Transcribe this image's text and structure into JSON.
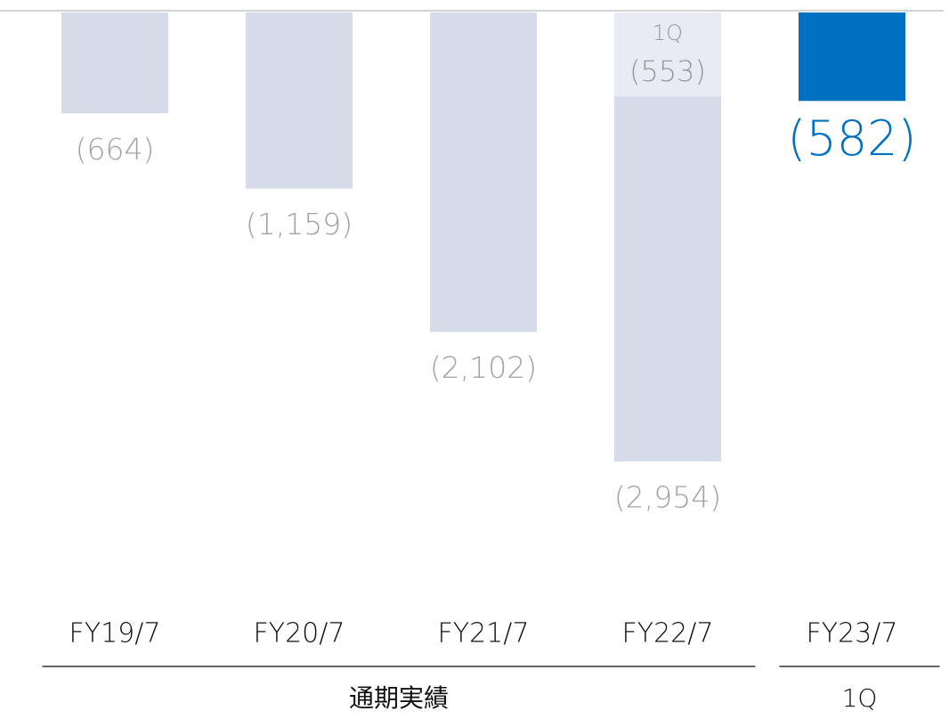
{
  "chart_data": {
    "type": "bar",
    "categories": [
      "FY19/7",
      "FY20/7",
      "FY21/7",
      "FY22/7",
      "FY23/7"
    ],
    "values": [
      -664,
      -1159,
      -2102,
      -2954,
      -582
    ],
    "value_labels": [
      "(664)",
      "(1,159)",
      "(2,102)",
      "(2,954)",
      "(582)"
    ],
    "colors": [
      "#d6dbe9",
      "#d6dbe9",
      "#d6dbe9",
      "#d6dbe9",
      "#0070c0"
    ],
    "overlay": {
      "name": "1Q",
      "color": "#e8ebf3",
      "values": [
        null,
        null,
        null,
        -553,
        null
      ],
      "value_labels": [
        null,
        null,
        null,
        "(553)",
        null
      ]
    },
    "groups": [
      {
        "label": "通期実績",
        "count": 4
      },
      {
        "label": "1Q",
        "count": 1
      }
    ],
    "ylim": [
      -3500,
      0
    ]
  }
}
